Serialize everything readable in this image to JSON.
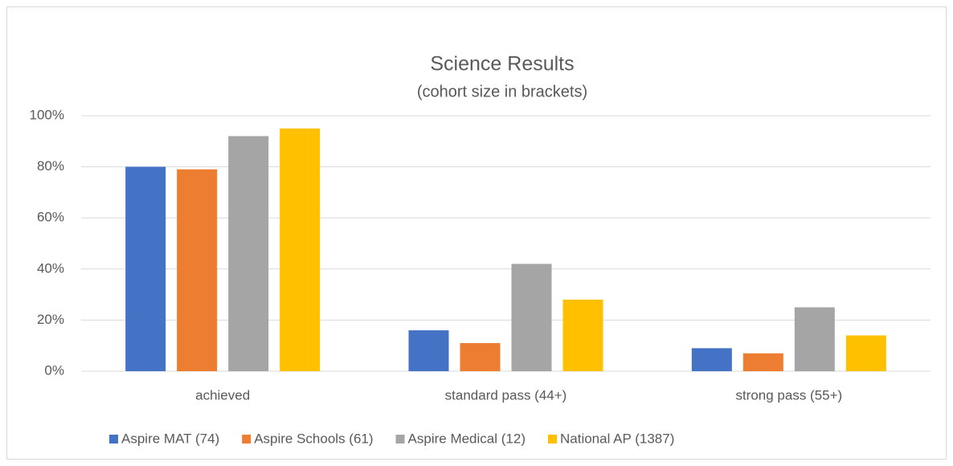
{
  "chart_data": {
    "type": "bar",
    "title": "Science Results",
    "subtitle": "(cohort size in brackets)",
    "categories": [
      "achieved",
      "standard pass (44+)",
      "strong pass (55+)"
    ],
    "series": [
      {
        "name": "Aspire MAT (74)",
        "color": "#4472C4",
        "values": [
          80,
          16,
          9
        ]
      },
      {
        "name": "Aspire Schools (61)",
        "color": "#ED7D31",
        "values": [
          79,
          11,
          7
        ]
      },
      {
        "name": "Aspire Medical (12)",
        "color": "#A5A5A5",
        "values": [
          92,
          42,
          25
        ]
      },
      {
        "name": "National AP (1387)",
        "color": "#FFC000",
        "values": [
          95,
          28,
          14
        ]
      }
    ],
    "ylim": [
      0,
      100
    ],
    "yticks": [
      {
        "value": 0,
        "label": "0%"
      },
      {
        "value": 20,
        "label": "20%"
      },
      {
        "value": 40,
        "label": "40%"
      },
      {
        "value": 60,
        "label": "60%"
      },
      {
        "value": 80,
        "label": "80%"
      },
      {
        "value": 100,
        "label": "100%"
      }
    ],
    "grid": true,
    "legend": "bottom"
  }
}
